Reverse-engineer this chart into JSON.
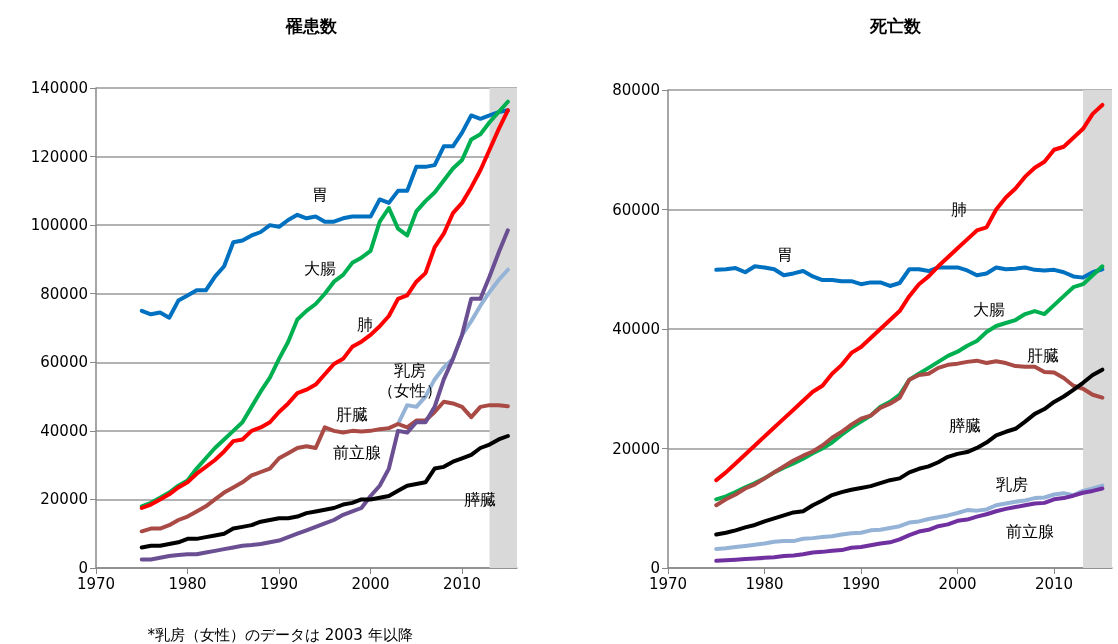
{
  "chart_data": [
    {
      "type": "line",
      "title": "罹患数",
      "x": [
        1975,
        1976,
        1977,
        1978,
        1979,
        1980,
        1981,
        1982,
        1983,
        1984,
        1985,
        1986,
        1987,
        1988,
        1989,
        1990,
        1991,
        1992,
        1993,
        1994,
        1995,
        1996,
        1997,
        1998,
        1999,
        2000,
        2001,
        2002,
        2003,
        2004,
        2005,
        2006,
        2007,
        2008,
        2009,
        2010,
        2011,
        2012,
        2013,
        2014,
        2015
      ],
      "xlim": [
        1970,
        2016
      ],
      "xticks": [
        1970,
        1980,
        1990,
        2000,
        2010
      ],
      "ylim": [
        0,
        140000
      ],
      "yticks": [
        0,
        20000,
        40000,
        60000,
        80000,
        100000,
        120000,
        140000
      ],
      "grid": "y",
      "legend": false,
      "bands": [
        {
          "axis": "x",
          "from": 2013,
          "to": 2016,
          "color": "#d9d9d9"
        }
      ],
      "annotations": [
        "*乳房（女性）のデータは 2003 年以降"
      ],
      "series": [
        {
          "name": "胃",
          "color": "#0070c0",
          "values": [
            75000,
            74000,
            74500,
            73000,
            78000,
            79500,
            81000,
            81000,
            85000,
            88000,
            95000,
            95500,
            97000,
            98000,
            100000,
            99500,
            101500,
            103000,
            102000,
            102500,
            101000,
            101000,
            102000,
            102500,
            102500,
            102500,
            107500,
            106500,
            110000,
            110000,
            117000,
            117000,
            117500,
            123000,
            123000,
            127000,
            132000,
            131000,
            132000,
            133000,
            133500
          ]
        },
        {
          "name": "大腸",
          "color": "#00b050",
          "values": [
            18000,
            19000,
            20500,
            22000,
            24000,
            25500,
            29000,
            32000,
            35000,
            37500,
            40000,
            42500,
            47000,
            51500,
            55500,
            61000,
            66000,
            72500,
            75000,
            77000,
            80000,
            83500,
            85500,
            89000,
            90500,
            92500,
            101000,
            105000,
            99000,
            97000,
            104000,
            107000,
            109500,
            113000,
            116500,
            119000,
            125000,
            126500,
            130000,
            133000,
            136000
          ]
        },
        {
          "name": "肺",
          "color": "#ff0000",
          "values": [
            17500,
            18500,
            20000,
            21500,
            23500,
            25000,
            27500,
            29500,
            31500,
            34000,
            37000,
            37500,
            40000,
            41000,
            42500,
            45500,
            48000,
            51000,
            52000,
            53500,
            56500,
            59500,
            61000,
            64500,
            66000,
            68000,
            70500,
            73500,
            78500,
            79500,
            83500,
            86000,
            93500,
            97500,
            103500,
            106500,
            111000,
            116000,
            122000,
            128000,
            133500
          ]
        },
        {
          "name": "乳房（女性）",
          "color": "#95b3d7",
          "x": [
            2003,
            2004,
            2005,
            2006,
            2007,
            2008,
            2009,
            2010,
            2011,
            2012,
            2013,
            2014,
            2015
          ],
          "values": [
            42000,
            47500,
            47000,
            50000,
            55000,
            58500,
            61000,
            68000,
            72000,
            76500,
            80500,
            84000,
            87000
          ]
        },
        {
          "name": "肝臓",
          "color": "#a94a45",
          "values": [
            10700,
            11500,
            11500,
            12500,
            14000,
            15000,
            16500,
            18000,
            20000,
            22000,
            23500,
            25000,
            27000,
            28000,
            29000,
            32000,
            33500,
            35000,
            35500,
            35000,
            41000,
            40000,
            39500,
            40000,
            39800,
            40000,
            40500,
            40800,
            42000,
            41000,
            43000,
            43000,
            45500,
            48500,
            48000,
            47000,
            44000,
            47000,
            47500,
            47500,
            47200
          ]
        },
        {
          "name": "前立腺",
          "color": "#6a4f92",
          "values": [
            2500,
            2500,
            3000,
            3500,
            3800,
            4000,
            4000,
            4500,
            5000,
            5500,
            6000,
            6500,
            6700,
            7000,
            7500,
            8000,
            9000,
            10000,
            11000,
            12000,
            13000,
            14000,
            15500,
            16500,
            17500,
            21000,
            24000,
            29000,
            40000,
            39500,
            42500,
            42500,
            47000,
            55000,
            61000,
            68000,
            78500,
            78500,
            85000,
            92000,
            98500
          ]
        },
        {
          "name": "膵臓",
          "color": "#000000",
          "values": [
            6000,
            6500,
            6500,
            7000,
            7500,
            8500,
            8500,
            9000,
            9500,
            10000,
            11500,
            12000,
            12500,
            13500,
            14000,
            14500,
            14500,
            15000,
            16000,
            16500,
            17000,
            17500,
            18500,
            19000,
            20000,
            20000,
            20500,
            21000,
            22500,
            24000,
            24500,
            25000,
            29000,
            29500,
            31000,
            32000,
            33000,
            35000,
            36000,
            37500,
            38500
          ]
        }
      ]
    },
    {
      "type": "line",
      "title": "死亡数",
      "x": [
        1975,
        1976,
        1977,
        1978,
        1979,
        1980,
        1981,
        1982,
        1983,
        1984,
        1985,
        1986,
        1987,
        1988,
        1989,
        1990,
        1991,
        1992,
        1993,
        1994,
        1995,
        1996,
        1997,
        1998,
        1999,
        2000,
        2001,
        2002,
        2003,
        2004,
        2005,
        2006,
        2007,
        2008,
        2009,
        2010,
        2011,
        2012,
        2013,
        2014,
        2015
      ],
      "xlim": [
        1970,
        2016
      ],
      "xticks": [
        1970,
        1980,
        1990,
        2000,
        2010
      ],
      "ylim": [
        0,
        80000
      ],
      "yticks": [
        0,
        20000,
        40000,
        60000,
        80000
      ],
      "grid": "y",
      "legend": false,
      "bands": [
        {
          "axis": "x",
          "from": 2013,
          "to": 2016,
          "color": "#d9d9d9"
        }
      ],
      "series": [
        {
          "name": "胃",
          "color": "#0070c0",
          "values": [
            49900,
            50000,
            50200,
            49500,
            50500,
            50300,
            50000,
            49000,
            49300,
            49700,
            48800,
            48200,
            48200,
            48000,
            48000,
            47500,
            47800,
            47800,
            47200,
            47700,
            50000,
            50000,
            49700,
            50300,
            50300,
            50300,
            49800,
            49000,
            49300,
            50300,
            50000,
            50100,
            50300,
            49900,
            49800,
            49900,
            49500,
            48800,
            48600,
            49500,
            50000
          ]
        },
        {
          "name": "肺",
          "color": "#ff0000",
          "values": [
            14700,
            16000,
            17500,
            19000,
            20500,
            22000,
            23500,
            25000,
            26500,
            28000,
            29500,
            30500,
            32500,
            34000,
            36000,
            37000,
            38500,
            40000,
            41500,
            43000,
            45500,
            47500,
            48800,
            50500,
            52000,
            53500,
            55000,
            56500,
            57000,
            60000,
            62000,
            63500,
            65500,
            67000,
            68000,
            70000,
            70500,
            72000,
            73500,
            76000,
            77500
          ]
        },
        {
          "name": "大腸",
          "color": "#00b050",
          "values": [
            11500,
            12000,
            12700,
            13500,
            14200,
            15000,
            16000,
            16800,
            17500,
            18300,
            19200,
            20000,
            21000,
            22300,
            23500,
            24500,
            25500,
            27000,
            27800,
            29000,
            31500,
            32500,
            33500,
            34500,
            35500,
            36200,
            37200,
            38000,
            39500,
            40500,
            41000,
            41500,
            42500,
            43000,
            42500,
            44000,
            45500,
            47000,
            47500,
            49000,
            50500
          ]
        },
        {
          "name": "肝臓",
          "color": "#a94a45",
          "values": [
            10500,
            11500,
            12300,
            13300,
            14000,
            15000,
            16000,
            17000,
            18000,
            18800,
            19500,
            20500,
            21800,
            22800,
            24000,
            25000,
            25500,
            26800,
            27500,
            28500,
            31500,
            32300,
            32500,
            33500,
            34000,
            34200,
            34500,
            34700,
            34300,
            34600,
            34300,
            33800,
            33700,
            33700,
            32800,
            32700,
            31800,
            30500,
            30000,
            29000,
            28500
          ]
        },
        {
          "name": "膵臓",
          "color": "#000000",
          "values": [
            5600,
            5900,
            6300,
            6800,
            7200,
            7800,
            8300,
            8800,
            9300,
            9500,
            10500,
            11300,
            12200,
            12700,
            13100,
            13400,
            13700,
            14200,
            14700,
            15000,
            16000,
            16600,
            17000,
            17700,
            18600,
            19100,
            19400,
            20100,
            21000,
            22200,
            22800,
            23300,
            24500,
            25800,
            26600,
            27800,
            28700,
            29800,
            31000,
            32300,
            33200
          ]
        },
        {
          "name": "乳房",
          "color": "#95b3d7",
          "values": [
            3200,
            3300,
            3500,
            3700,
            3900,
            4100,
            4400,
            4500,
            4500,
            4900,
            5000,
            5200,
            5300,
            5600,
            5800,
            5900,
            6300,
            6400,
            6700,
            7000,
            7600,
            7800,
            8200,
            8500,
            8800,
            9200,
            9700,
            9600,
            9800,
            10500,
            10800,
            11100,
            11300,
            11700,
            11800,
            12300,
            12500,
            12200,
            12900,
            13300,
            13800
          ]
        },
        {
          "name": "前立腺",
          "color": "#7030a0",
          "values": [
            1200,
            1300,
            1400,
            1500,
            1600,
            1700,
            1800,
            2000,
            2100,
            2300,
            2600,
            2700,
            2900,
            3000,
            3400,
            3500,
            3800,
            4100,
            4300,
            4800,
            5500,
            6100,
            6400,
            7000,
            7300,
            7900,
            8100,
            8600,
            9000,
            9500,
            9900,
            10200,
            10500,
            10800,
            10900,
            11500,
            11700,
            12100,
            12600,
            12900,
            13300
          ]
        }
      ]
    }
  ]
}
